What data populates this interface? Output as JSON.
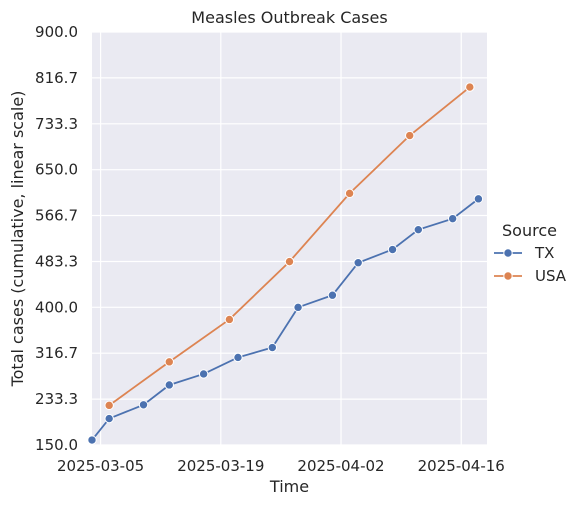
{
  "chart_data": {
    "type": "line",
    "title": "Measles Outbreak Cases",
    "xlabel": "Time",
    "ylabel": "Total cases (cumulative, linear scale)",
    "xlim": [
      "2025-03-04",
      "2025-04-19"
    ],
    "ylim": [
      150.0,
      900.0
    ],
    "xtick_labels": [
      "2025-03-05",
      "2025-03-19",
      "2025-04-02",
      "2025-04-16"
    ],
    "ytick_labels": [
      "150.0",
      "233.3",
      "316.7",
      "400.0",
      "483.3",
      "566.7",
      "650.0",
      "733.3",
      "816.7",
      "900.0"
    ],
    "grid": true,
    "background": "#eaeaf2",
    "legend": {
      "title": "Source",
      "position": "right"
    },
    "series": [
      {
        "name": "TX",
        "color": "#4c72b0",
        "x": [
          "2025-03-04",
          "2025-03-06",
          "2025-03-10",
          "2025-03-13",
          "2025-03-17",
          "2025-03-21",
          "2025-03-25",
          "2025-03-28",
          "2025-04-01",
          "2025-04-04",
          "2025-04-08",
          "2025-04-11",
          "2025-04-15",
          "2025-04-18"
        ],
        "values": [
          159,
          198,
          223,
          259,
          279,
          309,
          327,
          400,
          422,
          481,
          505,
          541,
          561,
          597
        ]
      },
      {
        "name": "USA",
        "color": "#dd8452",
        "x": [
          "2025-03-06",
          "2025-03-13",
          "2025-03-20",
          "2025-03-27",
          "2025-04-03",
          "2025-04-10",
          "2025-04-17"
        ],
        "values": [
          222,
          301,
          378,
          483,
          607,
          712,
          800
        ]
      }
    ]
  }
}
